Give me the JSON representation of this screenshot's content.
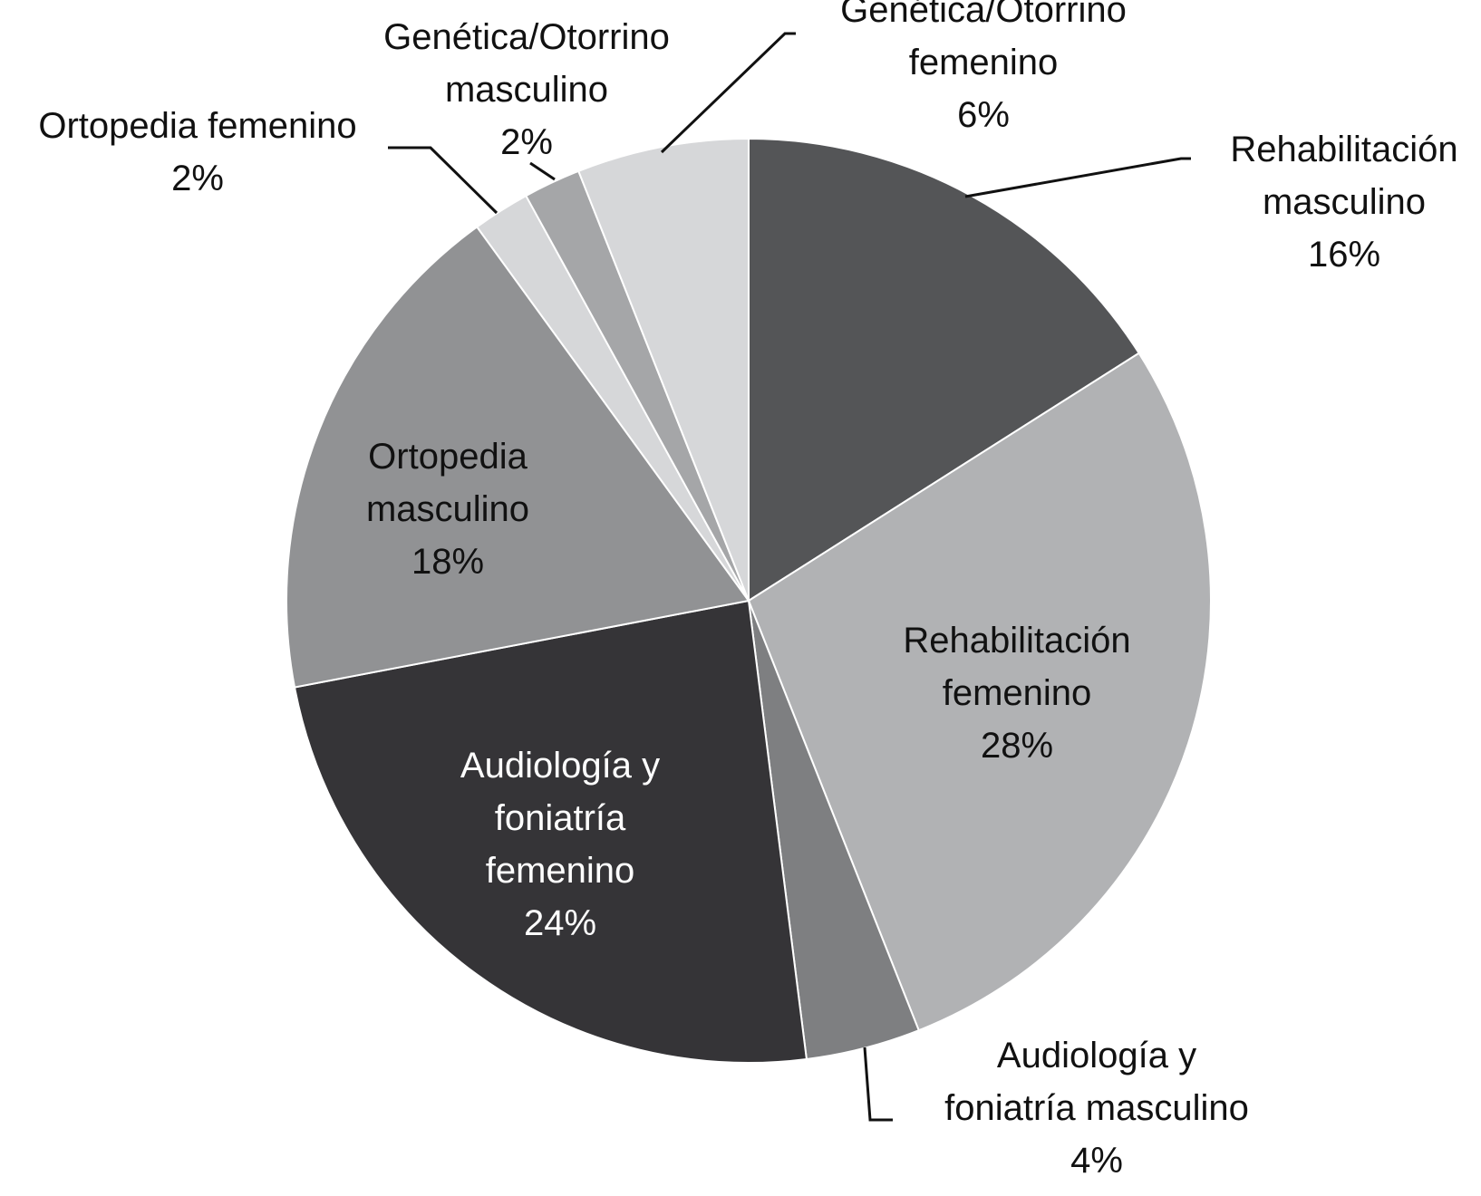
{
  "chart_data": {
    "type": "pie",
    "title": "",
    "slices": [
      {
        "label": "Rehabilitación masculino",
        "value": 16,
        "value_label": "16%",
        "color": "#545557",
        "label_position": "outside",
        "label_color": "#111111"
      },
      {
        "label": "Rehabilitación femenino",
        "value": 28,
        "value_label": "28%",
        "color": "#b1b2b4",
        "label_position": "inside",
        "label_color": "#111111"
      },
      {
        "label": "Audiología y foniatría masculino",
        "value": 4,
        "value_label": "4%",
        "color": "#7e7f81",
        "label_position": "outside",
        "label_color": "#111111"
      },
      {
        "label": "Audiología y foniatría femenino",
        "value": 24,
        "value_label": "24%",
        "color": "#353437",
        "label_position": "inside",
        "label_color": "#ffffff"
      },
      {
        "label": "Ortopedia masculino",
        "value": 18,
        "value_label": "18%",
        "color": "#919294",
        "label_position": "inside",
        "label_color": "#111111"
      },
      {
        "label": "Ortopedia femenino",
        "value": 2,
        "value_label": "2%",
        "color": "#d6d7d9",
        "label_position": "outside",
        "label_color": "#111111"
      },
      {
        "label": "Genética/Otorrino masculino",
        "value": 2,
        "value_label": "2%",
        "color": "#a5a6a8",
        "label_position": "outside",
        "label_color": "#111111"
      },
      {
        "label": "Genética/Otorrino femenino",
        "value": 6,
        "value_label": "6%",
        "color": "#d6d7d9",
        "label_position": "outside",
        "label_color": "#111111"
      }
    ],
    "start": "12 o'clock",
    "direction": "clockwise",
    "legend": "none"
  }
}
